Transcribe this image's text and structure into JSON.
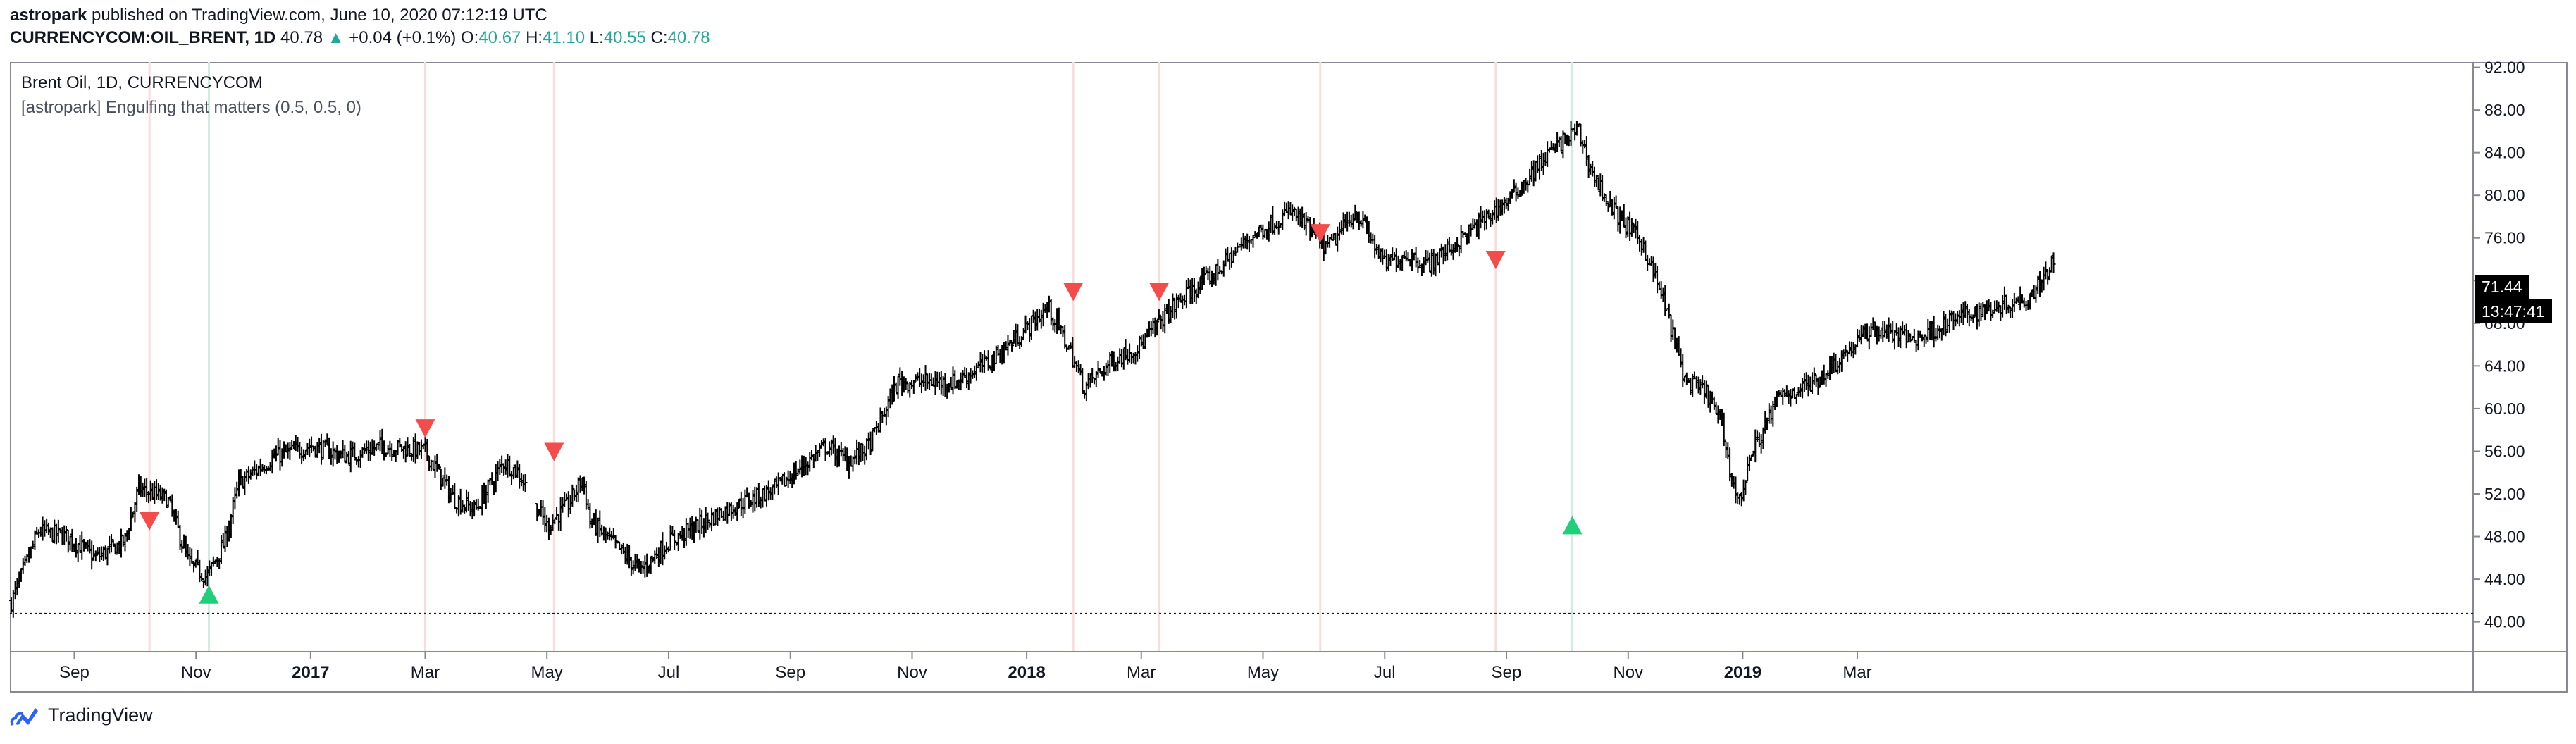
{
  "header": {
    "author": "astropark",
    "published_text": " published on TradingView.com, June 10, 2020 07:12:19 UTC",
    "symbol": "CURRENCYCOM:OIL_BRENT, 1D",
    "last": "40.78",
    "change": "+0.04 (+0.1%)",
    "o_label": "O:",
    "o_value": "40.67",
    "h_label": "H:",
    "h_value": "41.10",
    "l_label": "L:",
    "l_value": "40.55",
    "c_label": "C:",
    "c_value": "40.78"
  },
  "legend": {
    "title": "Brent Oil, 1D, CURRENCYCOM",
    "indicator": "[astropark] Engulfing that matters (0.5, 0.5, 0)"
  },
  "price_label": "71.44",
  "countdown_label": "13:47:41",
  "footer": {
    "brand": "TradingView"
  },
  "colors": {
    "up_marker": "#1fd07a",
    "down_marker": "#f44b4b",
    "bar": "#000000",
    "reference_line": "#131722"
  },
  "chart_data": {
    "type": "ohlc",
    "title": "Brent Oil, 1D, CURRENCYCOM",
    "x_range": [
      2016.58,
      2020.02
    ],
    "ylim": [
      37.2,
      92.5
    ],
    "y_ticks": [
      "40.00",
      "44.00",
      "48.00",
      "52.00",
      "56.00",
      "60.00",
      "64.00",
      "68.00",
      "72.00",
      "76.00",
      "80.00",
      "84.00",
      "88.00",
      "92.00"
    ],
    "x_ticks": [
      {
        "label": "Sep",
        "t": 2016.67,
        "bold": false
      },
      {
        "label": "Nov",
        "t": 2016.84,
        "bold": false
      },
      {
        "label": "2017",
        "t": 2017.0,
        "bold": true
      },
      {
        "label": "Mar",
        "t": 2017.16,
        "bold": false
      },
      {
        "label": "May",
        "t": 2017.33,
        "bold": false
      },
      {
        "label": "Jul",
        "t": 2017.5,
        "bold": false
      },
      {
        "label": "Sep",
        "t": 2017.67,
        "bold": false
      },
      {
        "label": "Nov",
        "t": 2017.84,
        "bold": false
      },
      {
        "label": "2018",
        "t": 2018.0,
        "bold": true
      },
      {
        "label": "Mar",
        "t": 2018.16,
        "bold": false
      },
      {
        "label": "May",
        "t": 2018.33,
        "bold": false
      },
      {
        "label": "Jul",
        "t": 2018.5,
        "bold": false
      },
      {
        "label": "Sep",
        "t": 2018.67,
        "bold": false
      },
      {
        "label": "Nov",
        "t": 2018.84,
        "bold": false
      },
      {
        "label": "2019",
        "t": 2019.0,
        "bold": true
      },
      {
        "label": "Mar",
        "t": 2019.16,
        "bold": false
      }
    ],
    "price_path": [
      [
        2016.58,
        41.5
      ],
      [
        2016.62,
        48.5
      ],
      [
        2016.66,
        48.0
      ],
      [
        2016.7,
        46.0
      ],
      [
        2016.74,
        47.5
      ],
      [
        2016.76,
        52.5
      ],
      [
        2016.8,
        51.5
      ],
      [
        2016.83,
        45.5
      ],
      [
        2016.855,
        44.2
      ],
      [
        2016.88,
        47.5
      ],
      [
        2016.9,
        53.0
      ],
      [
        2016.95,
        55.5
      ],
      [
        2017.0,
        56.5
      ],
      [
        2017.05,
        55.5
      ],
      [
        2017.1,
        56.5
      ],
      [
        2017.16,
        56.0
      ],
      [
        2017.2,
        51.5
      ],
      [
        2017.23,
        50.5
      ],
      [
        2017.27,
        55.0
      ],
      [
        2017.29,
        54.0
      ],
      [
        2017.31,
        51.5
      ],
      [
        2017.33,
        49.0
      ],
      [
        2017.36,
        51.0
      ],
      [
        2017.38,
        53.5
      ],
      [
        2017.39,
        49.5
      ],
      [
        2017.42,
        47.5
      ],
      [
        2017.46,
        44.8
      ],
      [
        2017.5,
        47.5
      ],
      [
        2017.58,
        50.5
      ],
      [
        2017.65,
        52.5
      ],
      [
        2017.72,
        56.5
      ],
      [
        2017.75,
        55.0
      ],
      [
        2017.78,
        56.5
      ],
      [
        2017.82,
        62.5
      ],
      [
        2017.9,
        62.5
      ],
      [
        2017.95,
        64.5
      ],
      [
        2018.0,
        67.5
      ],
      [
        2018.03,
        69.5
      ],
      [
        2018.06,
        65.5
      ],
      [
        2018.08,
        62.0
      ],
      [
        2018.12,
        64.5
      ],
      [
        2018.16,
        66.0
      ],
      [
        2018.19,
        68.5
      ],
      [
        2018.22,
        70.5
      ],
      [
        2018.26,
        72.5
      ],
      [
        2018.31,
        76.0
      ],
      [
        2018.37,
        78.5
      ],
      [
        2018.42,
        75.0
      ],
      [
        2018.46,
        78.5
      ],
      [
        2018.5,
        73.5
      ],
      [
        2018.53,
        74.5
      ],
      [
        2018.56,
        73.5
      ],
      [
        2018.6,
        75.5
      ],
      [
        2018.68,
        80.0
      ],
      [
        2018.73,
        84.0
      ],
      [
        2018.77,
        86.2
      ],
      [
        2018.79,
        82.0
      ],
      [
        2018.82,
        78.5
      ],
      [
        2018.86,
        75.5
      ],
      [
        2018.89,
        70.0
      ],
      [
        2018.92,
        62.5
      ],
      [
        2018.95,
        61.5
      ],
      [
        2018.97,
        58.5
      ],
      [
        2018.985,
        53.5
      ],
      [
        2018.995,
        51.0
      ],
      [
        2019.01,
        55.5
      ],
      [
        2019.05,
        61.0
      ],
      [
        2019.1,
        62.5
      ],
      [
        2019.14,
        65.0
      ],
      [
        2019.18,
        67.5
      ],
      [
        2019.24,
        66.5
      ],
      [
        2019.3,
        68.5
      ],
      [
        2019.35,
        69.5
      ],
      [
        2019.4,
        70.5
      ],
      [
        2019.43,
        73.5
      ]
    ],
    "gaps": [
      [
        2017.3,
        2017.315
      ]
    ],
    "reference_line": {
      "value": 40.78,
      "style": "dotted"
    },
    "signals": [
      {
        "type": "bearish",
        "t": 2016.775,
        "price": 49.5
      },
      {
        "type": "bullish",
        "t": 2016.858,
        "price": 42.5
      },
      {
        "type": "bearish",
        "t": 2017.16,
        "price": 58.2
      },
      {
        "type": "bearish",
        "t": 2017.34,
        "price": 56.0
      },
      {
        "type": "bearish",
        "t": 2018.065,
        "price": 71.0
      },
      {
        "type": "bearish",
        "t": 2018.185,
        "price": 71.0
      },
      {
        "type": "bearish",
        "t": 2018.41,
        "price": 76.5
      },
      {
        "type": "bearish",
        "t": 2018.655,
        "price": 74.0
      },
      {
        "type": "bullish",
        "t": 2018.762,
        "price": 49.0
      }
    ],
    "current_price": 71.44
  }
}
